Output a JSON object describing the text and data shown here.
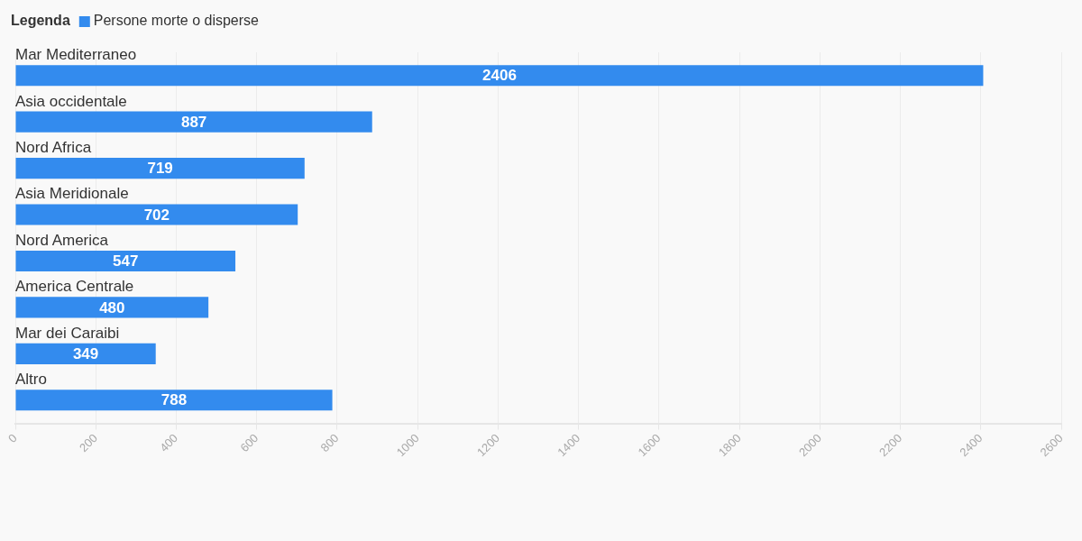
{
  "chart_data": {
    "type": "bar",
    "orientation": "horizontal",
    "legend_title": "Legenda",
    "categories": [
      "Mar Mediterraneo",
      "Asia occidentale",
      "Nord Africa",
      "Asia Meridionale",
      "Nord America",
      "America Centrale",
      "Mar dei Caraibi",
      "Altro"
    ],
    "series": [
      {
        "name": "Persone morte o disperse",
        "color": "#338bee",
        "values": [
          2406,
          887,
          719,
          702,
          547,
          480,
          349,
          788
        ]
      }
    ],
    "xlim": [
      0,
      2600
    ],
    "xticks": [
      0,
      200,
      400,
      600,
      800,
      1000,
      1200,
      1400,
      1600,
      1800,
      2000,
      2200,
      2400,
      2600
    ],
    "grid": "x",
    "legend": "top left",
    "data_labels": true
  }
}
